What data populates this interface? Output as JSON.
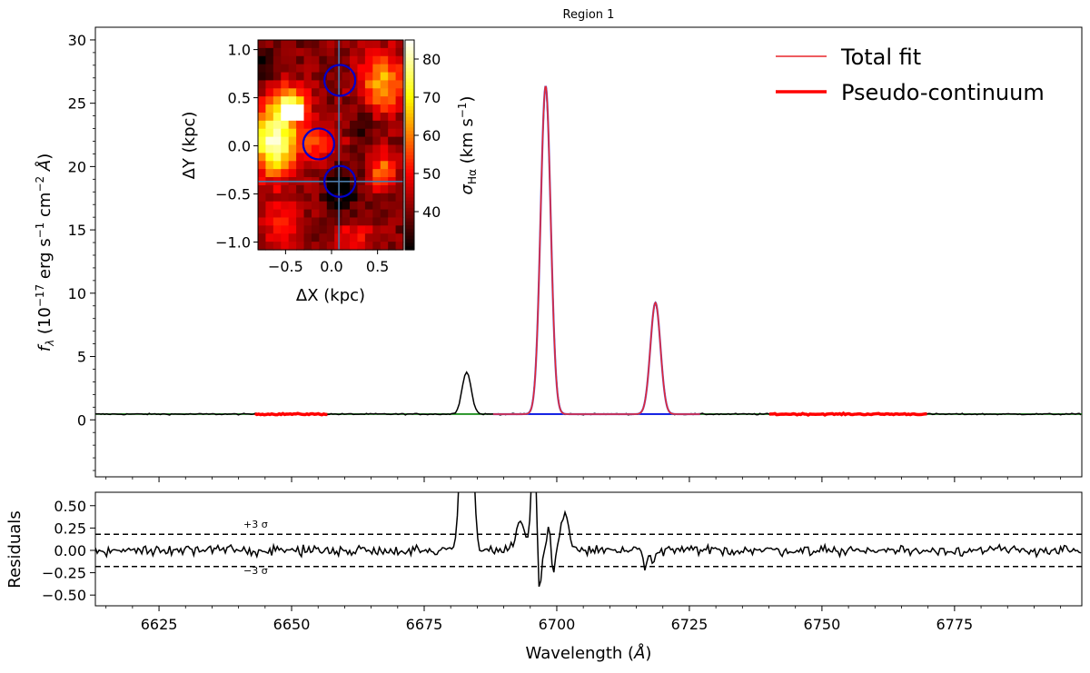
{
  "title": "Region 1",
  "colors": {
    "data": "#000000",
    "total_fit": "#e8262b",
    "gauss": "#7c4dbb",
    "pseudo_continuum": "#ff0000",
    "continuum_line": "#008000",
    "baseline": "#0000ff",
    "inset_circle": "#0000cc",
    "inset_crosshair": "#4a7aa8"
  },
  "chart_data": [
    {
      "type": "line",
      "name": "spectrum",
      "xlabel": "",
      "ylabel": "f_λ (10^-17 erg s^-1 cm^-2 Å)",
      "ylim": [
        -4.5,
        31
      ],
      "xlim": [
        6613,
        6799
      ],
      "yticks": [
        0,
        5,
        10,
        15,
        20,
        25,
        30
      ],
      "legend": [
        "Total fit",
        "Pseudo-continuum"
      ],
      "legend_placement": "top-right",
      "continuum_level": 0.45,
      "lines": [
        {
          "center": 6683.0,
          "peak": 3.35,
          "sigma": 0.85,
          "fitted": false
        },
        {
          "center": 6697.9,
          "peak": 25.9,
          "sigma": 0.95,
          "fitted": true
        },
        {
          "center": 6718.6,
          "peak": 8.8,
          "sigma": 0.95,
          "fitted": true
        }
      ],
      "pseudo_continuum_ranges": [
        [
          6643,
          6657
        ],
        [
          6740,
          6770
        ]
      ],
      "fit_range": [
        6688,
        6727
      ]
    },
    {
      "type": "line",
      "name": "residuals",
      "xlabel": "Wavelength (Å)",
      "ylabel": "Residuals",
      "xlim": [
        6613,
        6799
      ],
      "ylim": [
        -0.62,
        0.65
      ],
      "xticks": [
        6625,
        6650,
        6675,
        6700,
        6725,
        6750,
        6775
      ],
      "yticks": [
        0.5,
        0.25,
        0.0,
        -0.25,
        -0.5
      ],
      "ytick_labels": [
        "0.50",
        "0.25",
        "0.00",
        "−0.25",
        "−0.50"
      ],
      "threshold_labels": [
        "+3 σ",
        "−3 σ"
      ],
      "threshold": 0.18
    },
    {
      "type": "heatmap",
      "name": "inset-map",
      "xlabel": "ΔX (kpc)",
      "ylabel": "ΔY (kpc)",
      "colorbar_label": "σ_Hα (km s^-1)",
      "xlim": [
        -0.8,
        0.78
      ],
      "ylim": [
        -1.08,
        1.1
      ],
      "xticks": [
        -0.5,
        0.0,
        0.5
      ],
      "xtick_labels": [
        "−0.5",
        "0.0",
        "0.5"
      ],
      "yticks": [
        1.0,
        0.5,
        0.0,
        -0.5,
        -1.0
      ],
      "ytick_labels": [
        "1.0",
        "0.5",
        "0.0",
        "−0.5",
        "−1.0"
      ],
      "colorbar_range": [
        30,
        85
      ],
      "colorbar_ticks": [
        40,
        50,
        60,
        70,
        80
      ],
      "circles": [
        {
          "x": 0.09,
          "y": 0.68
        },
        {
          "x": -0.14,
          "y": 0.02
        },
        {
          "x": 0.09,
          "y": -0.37
        }
      ],
      "crosshair": {
        "x": 0.08,
        "y": -0.37
      }
    }
  ]
}
